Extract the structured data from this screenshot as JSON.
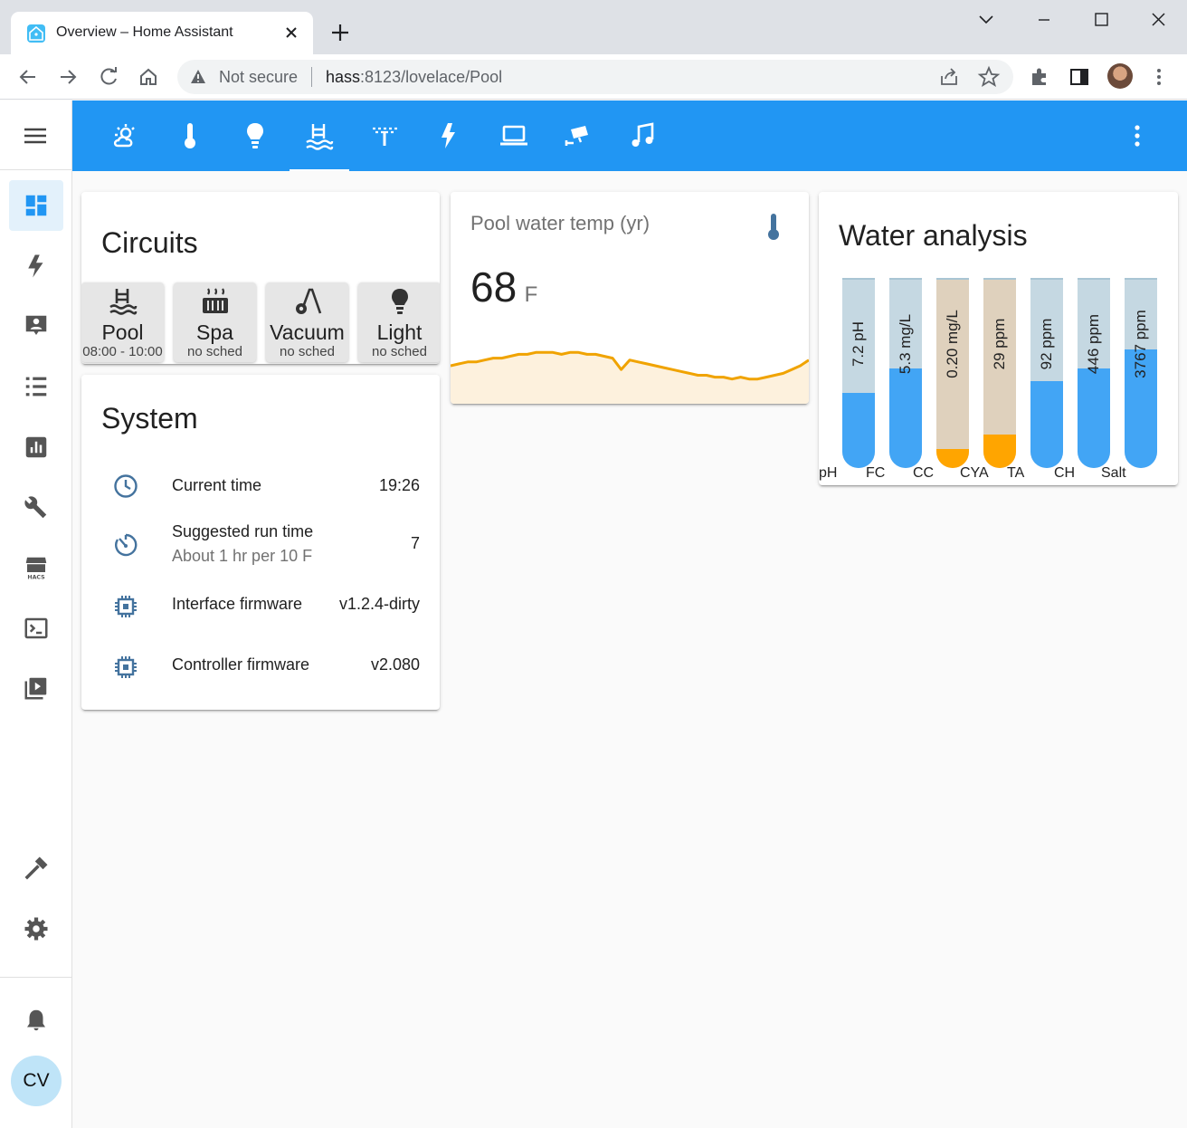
{
  "browser": {
    "tab_title": "Overview – Home Assistant",
    "security_label": "Not secure",
    "url_host": "hass",
    "url_rest": ":8123/lovelace/Pool"
  },
  "sidebar": {
    "items": [
      "overview",
      "energy",
      "logbook",
      "history",
      "statistics",
      "config-tools",
      "hacs",
      "terminal",
      "media"
    ],
    "bottom_items": [
      "developer-tools",
      "settings",
      "notifications"
    ],
    "user_initials": "CV"
  },
  "header": {
    "tabs": [
      "weather",
      "temperature",
      "lights",
      "pool",
      "sprinkler",
      "energy",
      "computers",
      "cameras",
      "music"
    ],
    "active_tab": "pool"
  },
  "circuits": {
    "title": "Circuits",
    "buttons": [
      {
        "name": "Pool",
        "schedule": "08:00 - 10:00",
        "icon": "pool-icon"
      },
      {
        "name": "Spa",
        "schedule": "no sched",
        "icon": "hot-tub-icon"
      },
      {
        "name": "Vacuum",
        "schedule": "no sched",
        "icon": "vacuum-icon"
      },
      {
        "name": "Light",
        "schedule": "no sched",
        "icon": "lightbulb-icon"
      }
    ]
  },
  "system": {
    "title": "System",
    "rows": [
      {
        "label": "Current time",
        "value": "19:26",
        "icon": "clock-icon"
      },
      {
        "label": "Suggested run time",
        "sublabel": "About 1 hr per 10 F",
        "value": "7",
        "icon": "timer-icon"
      },
      {
        "label": "Interface firmware",
        "value": "v1.2.4-dirty",
        "icon": "chip-icon"
      },
      {
        "label": "Controller firmware",
        "value": "v2.080",
        "icon": "chip-icon"
      }
    ]
  },
  "temperature": {
    "title": "Pool water temp (yr)",
    "value": "68",
    "unit": "F",
    "line_color": "#f0a300",
    "fill_color": "#fdf1dd",
    "samples": [
      60,
      61,
      62,
      62,
      63,
      64,
      64,
      65,
      66,
      66,
      67,
      67,
      67,
      66,
      67,
      67,
      66,
      66,
      65,
      64,
      58,
      63,
      62,
      61,
      60,
      59,
      58,
      57,
      56,
      55,
      55,
      54,
      54,
      53,
      54,
      53,
      53,
      54,
      55,
      56,
      58,
      60,
      63
    ]
  },
  "water_analysis": {
    "title": "Water analysis",
    "tubes": [
      {
        "label": "7.2 pH",
        "name": "pH",
        "level": 0.4,
        "color": "#42a5f5"
      },
      {
        "label": "5.3 mg/L",
        "name": "FC",
        "level": 0.53,
        "color": "#42a5f5"
      },
      {
        "label": "0.20 mg/L",
        "name": "CC",
        "level": 0.1,
        "color": "#ffa500"
      },
      {
        "label": "29 ppm",
        "name": "CYA",
        "level": 0.18,
        "color": "#ffa500"
      },
      {
        "label": "92 ppm",
        "name": "TA",
        "level": 0.46,
        "color": "#42a5f5"
      },
      {
        "label": "446 ppm",
        "name": "CH",
        "level": 0.53,
        "color": "#42a5f5"
      },
      {
        "label": "3767 ppm",
        "name": "Salt",
        "level": 0.63,
        "color": "#42a5f5"
      }
    ]
  }
}
